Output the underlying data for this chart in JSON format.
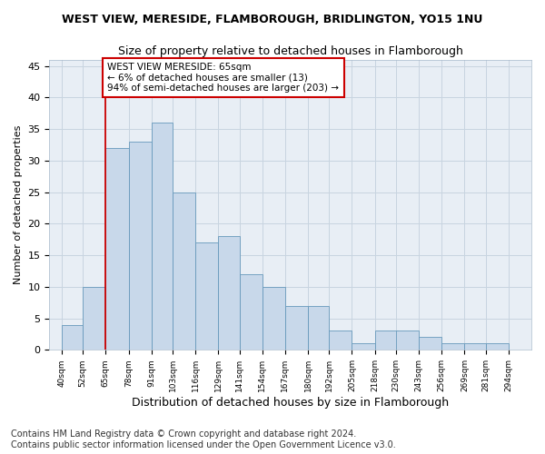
{
  "title1": "WEST VIEW, MERESIDE, FLAMBOROUGH, BRIDLINGTON, YO15 1NU",
  "title2": "Size of property relative to detached houses in Flamborough",
  "xlabel": "Distribution of detached houses by size in Flamborough",
  "ylabel": "Number of detached properties",
  "annotation_line1": "WEST VIEW MERESIDE: 65sqm",
  "annotation_line2": "← 6% of detached houses are smaller (13)",
  "annotation_line3": "94% of semi-detached houses are larger (203) →",
  "footer1": "Contains HM Land Registry data © Crown copyright and database right 2024.",
  "footer2": "Contains public sector information licensed under the Open Government Licence v3.0.",
  "bar_left_edges": [
    40,
    52,
    65,
    78,
    91,
    103,
    116,
    129,
    141,
    154,
    167,
    180,
    192,
    205,
    218,
    230,
    243,
    256,
    269,
    281
  ],
  "bar_widths": [
    12,
    13,
    13,
    13,
    12,
    13,
    13,
    12,
    13,
    13,
    13,
    12,
    13,
    13,
    13,
    13,
    13,
    13,
    12,
    13
  ],
  "bar_heights": [
    4,
    10,
    32,
    33,
    36,
    25,
    17,
    18,
    12,
    10,
    7,
    7,
    3,
    1,
    3,
    3,
    2,
    1,
    1,
    1
  ],
  "tick_labels": [
    "40sqm",
    "52sqm",
    "65sqm",
    "78sqm",
    "91sqm",
    "103sqm",
    "116sqm",
    "129sqm",
    "141sqm",
    "154sqm",
    "167sqm",
    "180sqm",
    "192sqm",
    "205sqm",
    "218sqm",
    "230sqm",
    "243sqm",
    "256sqm",
    "269sqm",
    "281sqm",
    "294sqm"
  ],
  "tick_positions": [
    40,
    52,
    65,
    78,
    91,
    103,
    116,
    129,
    141,
    154,
    167,
    180,
    192,
    205,
    218,
    230,
    243,
    256,
    269,
    281,
    294
  ],
  "bar_color": "#c8d8ea",
  "bar_edge_color": "#6699bb",
  "vline_x": 65,
  "vline_color": "#cc0000",
  "annotation_box_edge": "#cc0000",
  "ylim": [
    0,
    46
  ],
  "yticks": [
    0,
    5,
    10,
    15,
    20,
    25,
    30,
    35,
    40,
    45
  ],
  "grid_color": "#c8d4e0",
  "background_color": "#e8eef5",
  "title1_fontsize": 9,
  "title2_fontsize": 9,
  "xlabel_fontsize": 9,
  "ylabel_fontsize": 8,
  "annotation_fontsize": 7.5,
  "footer_fontsize": 7,
  "tick_fontsize": 6.5
}
